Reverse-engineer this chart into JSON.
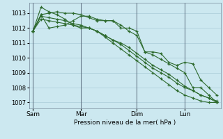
{
  "background_color": "#cce8f0",
  "grid_color": "#aaccd8",
  "line_color": "#2d6a2d",
  "marker_color": "#2d6a2d",
  "xlabel": "Pression niveau de la mer( hPa )",
  "ylim": [
    1006.6,
    1013.7
  ],
  "yticks": [
    1007,
    1008,
    1009,
    1010,
    1011,
    1012,
    1013
  ],
  "xtick_labels": [
    "Sam",
    "Mar",
    "Dim",
    "Lun"
  ],
  "xtick_positions": [
    0,
    6,
    13,
    19
  ],
  "vline_positions": [
    0,
    6,
    13,
    19
  ],
  "n_points": 24,
  "series": [
    [
      1011.8,
      1013.4,
      1013.1,
      1012.9,
      1012.6,
      1012.2,
      1012.0,
      1012.0,
      1011.8,
      1011.4,
      1011.0,
      1010.6,
      1010.2,
      1009.8,
      1009.4,
      1009.0,
      1008.6,
      1008.2,
      1007.8,
      1007.5,
      1007.3,
      1007.1,
      1007.0,
      1007.0
    ],
    [
      1011.8,
      1012.8,
      1012.7,
      1012.6,
      1012.5,
      1012.3,
      1012.2,
      1012.0,
      1011.8,
      1011.5,
      1011.2,
      1011.0,
      1010.7,
      1010.3,
      1009.9,
      1009.5,
      1009.2,
      1008.9,
      1008.5,
      1008.1,
      1007.8,
      1007.5,
      1007.3,
      1007.1
    ],
    [
      1011.8,
      1012.6,
      1012.5,
      1012.4,
      1012.3,
      1012.2,
      1012.1,
      1012.0,
      1011.8,
      1011.5,
      1011.2,
      1010.9,
      1010.5,
      1010.1,
      1009.7,
      1009.3,
      1009.0,
      1008.7,
      1008.3,
      1008.0,
      1007.8,
      1007.5,
      1007.3,
      1007.0
    ],
    [
      1011.8,
      1012.9,
      1013.0,
      1013.1,
      1013.0,
      1013.0,
      1012.9,
      1012.7,
      1012.5,
      1012.5,
      1012.5,
      1012.2,
      1011.8,
      1011.5,
      1010.4,
      1010.2,
      1009.9,
      1009.6,
      1009.3,
      1009.0,
      1008.0,
      1008.0,
      1007.5,
      1007.0
    ],
    [
      1011.8,
      1012.9,
      1012.0,
      1012.1,
      1012.2,
      1012.5,
      1012.8,
      1012.8,
      1012.6,
      1012.5,
      1012.5,
      1012.0,
      1012.0,
      1011.8,
      1010.4,
      1010.4,
      1010.3,
      1009.7,
      1009.5,
      1009.7,
      1009.6,
      1008.5,
      1008.0,
      1007.5
    ]
  ]
}
